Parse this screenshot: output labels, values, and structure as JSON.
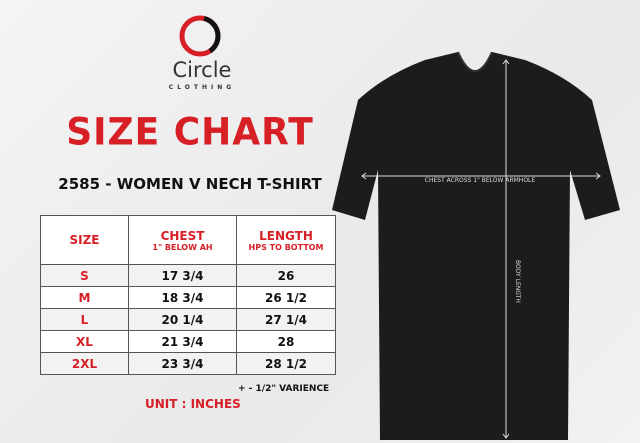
{
  "brand": {
    "name": "Circle",
    "tagline": "CLOTHING",
    "colors": {
      "red": "#d71f26",
      "black": "#111111"
    }
  },
  "title": "SIZE CHART",
  "subtitle": "2585 - WOMEN V NECH T-SHIRT",
  "table": {
    "headers": [
      {
        "label": "SIZE",
        "sub": ""
      },
      {
        "label": "CHEST",
        "sub": "1\" BELOW AH"
      },
      {
        "label": "LENGTH",
        "sub": "HPS TO BOTTOM"
      }
    ],
    "rows": [
      {
        "size": "S",
        "chest": "17 3/4",
        "length": "26"
      },
      {
        "size": "M",
        "chest": "18 3/4",
        "length": "26 1/2"
      },
      {
        "size": "L",
        "chest": "20 1/4",
        "length": "27 1/4"
      },
      {
        "size": "XL",
        "chest": "21 3/4",
        "length": "28"
      },
      {
        "size": "2XL",
        "chest": "23 3/4",
        "length": "28 1/2"
      }
    ]
  },
  "variance": "+ - 1/2\" VARIENCE",
  "unit": "UNIT : INCHES",
  "shirt": {
    "chest_label": "CHEST ACROSS 1\" BELOW ARMHOLE",
    "length_label": "BODY LENGTH",
    "color": "#1c1c1c"
  }
}
